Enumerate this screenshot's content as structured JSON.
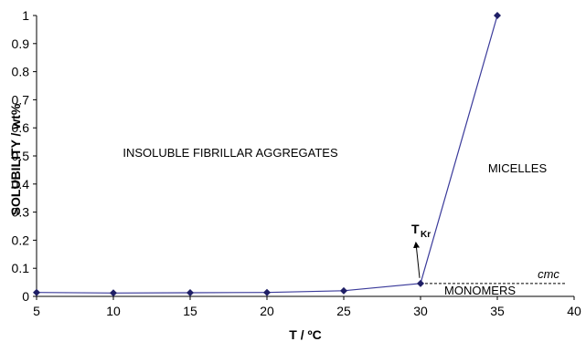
{
  "chart_data": {
    "type": "line",
    "title": "",
    "xlabel": "T / ºC",
    "ylabel": "SOLUBILITY / wt%",
    "xlim": [
      5,
      40
    ],
    "ylim": [
      0,
      1
    ],
    "x_ticks": [
      "5",
      "10",
      "15",
      "20",
      "25",
      "30",
      "35",
      "40"
    ],
    "y_ticks": [
      "0",
      "0.1",
      "0.2",
      "0.3",
      "0.4",
      "0.5",
      "0.6",
      "0.7",
      "0.8",
      "0.9",
      "1"
    ],
    "grid": false,
    "legend": "none",
    "series": [
      {
        "x": [
          5,
          10,
          15,
          20,
          25,
          30,
          35
        ],
        "y": [
          0.014,
          0.012,
          0.013,
          0.014,
          0.02,
          0.046,
          1.0
        ],
        "color": "#3a3a9a",
        "marker": "diamond",
        "marker_color": "#1f1f66"
      }
    ],
    "cmc_line": {
      "x": [
        30,
        39.5
      ],
      "y": 0.046,
      "style": "dashed",
      "label": "cmc"
    },
    "annotations": {
      "region_left": "INSOLUBLE FIBRILLAR AGGREGATES",
      "region_right": "MICELLES",
      "region_bottom": "MONOMERS",
      "tkr_main": "T",
      "tkr_sub": "Kr",
      "tkr_arrow_target": {
        "x": 30,
        "y": 0.046
      }
    }
  }
}
